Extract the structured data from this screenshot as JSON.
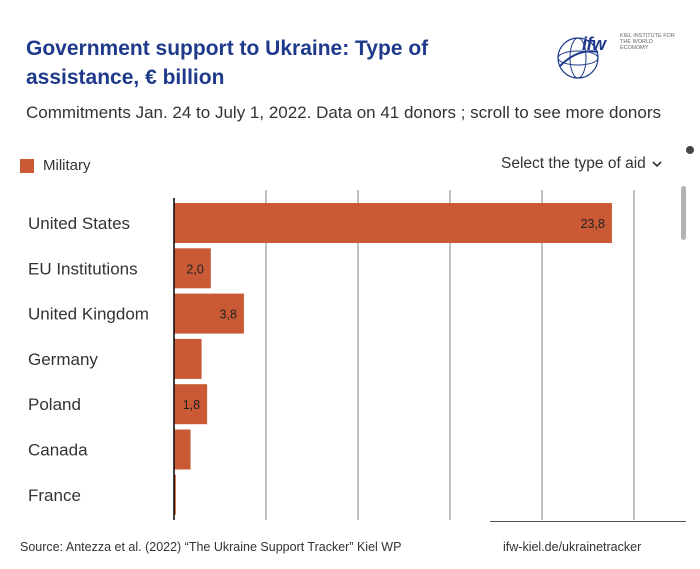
{
  "header": {
    "title": "Government support to Ukraine: Type of assistance, € billion",
    "subtitle": "Commitments Jan. 24 to July 1, 2022. Data on 41 donors ; scroll to see more donors"
  },
  "logo": {
    "name": "ifw",
    "subtitle": "KIEL INSTITUTE FOR THE WORLD ECONOMY"
  },
  "legend": {
    "label": "Military",
    "color": "#c95a35"
  },
  "controls": {
    "selector_label": "Select the type of aid",
    "chevron": "chevron-down-icon"
  },
  "chart_data": {
    "type": "bar",
    "orientation": "horizontal",
    "series_name": "Military",
    "categories": [
      "United States",
      "EU Institutions",
      "United Kingdom",
      "Germany",
      "Poland",
      "Canada",
      "France"
    ],
    "values": [
      23.8,
      2.0,
      3.8,
      1.5,
      1.8,
      0.9,
      0.1
    ],
    "value_labels": [
      "23,8",
      "2,0",
      "3,8",
      "",
      "1,8",
      "",
      ""
    ],
    "xlim": [
      0,
      27.5
    ],
    "gridlines": [
      5,
      10,
      15,
      20,
      25
    ]
  },
  "footer": {
    "source": "Source: Antezza et al. (2022) “The Ukraine Support Tracker” Kiel WP",
    "link": "ifw-kiel.de/ukrainetracker"
  }
}
